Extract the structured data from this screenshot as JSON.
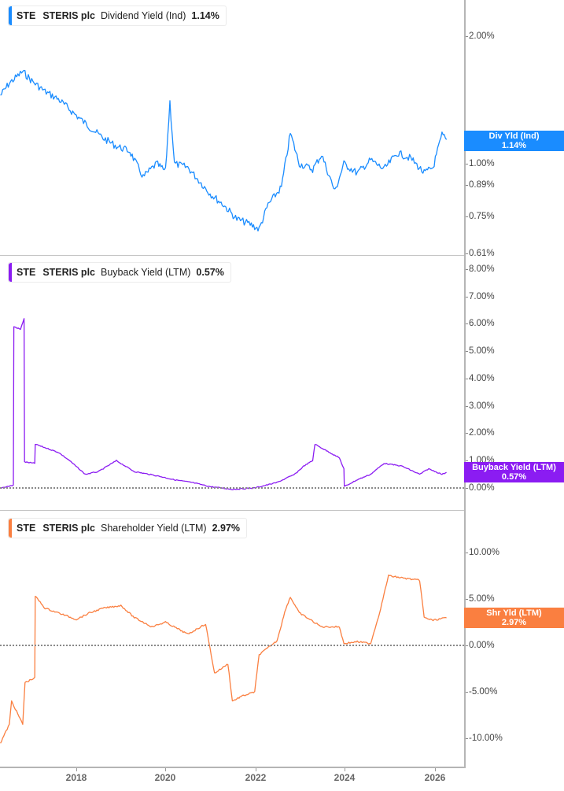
{
  "ticker": "STE",
  "company": "STERIS plc",
  "panels": [
    {
      "id": "dividend",
      "metric": "Dividend Yield (Ind)",
      "value": "1.14%",
      "color": "#1a8cff",
      "tag": {
        "line1": "Div Yld (Ind)",
        "line2": "1.14%"
      },
      "ticks": [
        "2.00%",
        "1.00%",
        "0.89%",
        "0.75%",
        "0.61%"
      ]
    },
    {
      "id": "buyback",
      "metric": "Buyback Yield (LTM)",
      "value": "0.57%",
      "color": "#8b1cf2",
      "tag": {
        "line1": "Buyback Yield (LTM)",
        "line2": "0.57%"
      },
      "ticks": [
        "8.00%",
        "7.00%",
        "6.00%",
        "5.00%",
        "4.00%",
        "3.00%",
        "2.00%",
        "1.00%",
        "0.00%"
      ]
    },
    {
      "id": "shareholder",
      "metric": "Shareholder Yield (LTM)",
      "value": "2.97%",
      "color": "#fa7f40",
      "tag": {
        "line1": "Shr Yld (LTM)",
        "line2": "2.97%"
      },
      "ticks": [
        "10.00%",
        "5.00%",
        "0.00%",
        "-5.00%",
        "-10.00%"
      ]
    }
  ],
  "x_axis": {
    "labels": [
      "2018",
      "2020",
      "2022",
      "2024",
      "2026"
    ]
  },
  "chart_data": [
    {
      "type": "line",
      "title": "STE STERIS plc Dividend Yield (Ind) 1.14%",
      "xlabel": "",
      "ylabel": "Dividend Yield (Ind)",
      "scale": "log",
      "yticks": [
        "2.00%",
        "1.00%",
        "0.89%",
        "0.75%",
        "0.61%"
      ],
      "ylim": [
        0.61,
        2.5
      ],
      "series": [
        {
          "name": "Div Yld (Ind)",
          "color": "#1a8cff",
          "x": [
            2016.3,
            2016.5,
            2016.8,
            2017.0,
            2017.3,
            2017.6,
            2018.0,
            2018.3,
            2018.6,
            2018.9,
            2019.2,
            2019.5,
            2019.8,
            2020.0,
            2020.1,
            2020.2,
            2020.5,
            2020.8,
            2021.0,
            2021.3,
            2021.6,
            2021.9,
            2022.1,
            2022.3,
            2022.6,
            2022.8,
            2023.0,
            2023.3,
            2023.5,
            2023.8,
            2024.0,
            2024.3,
            2024.6,
            2024.9,
            2025.2,
            2025.5,
            2025.8,
            2026.0,
            2026.2,
            2026.3
          ],
          "values": [
            1.45,
            1.55,
            1.65,
            1.57,
            1.48,
            1.42,
            1.3,
            1.22,
            1.15,
            1.1,
            1.07,
            0.93,
            1.0,
            0.96,
            1.4,
            1.0,
            0.98,
            0.9,
            0.85,
            0.8,
            0.74,
            0.72,
            0.7,
            0.8,
            0.88,
            1.18,
            1.0,
            0.97,
            1.05,
            0.86,
            1.0,
            0.95,
            1.02,
            0.97,
            1.06,
            1.03,
            0.95,
            0.98,
            1.17,
            1.14
          ]
        }
      ]
    },
    {
      "type": "line",
      "title": "STE STERIS plc Buyback Yield (LTM) 0.57%",
      "xlabel": "",
      "ylabel": "Buyback Yield (LTM)",
      "yticks": [
        "8.00%",
        "7.00%",
        "6.00%",
        "5.00%",
        "4.00%",
        "3.00%",
        "2.00%",
        "1.00%",
        "0.00%"
      ],
      "ylim": [
        -0.2,
        8.0
      ],
      "series": [
        {
          "name": "Buyback Yield (LTM)",
          "color": "#8b1cf2",
          "x": [
            2016.3,
            2016.59,
            2016.6,
            2016.75,
            2016.83,
            2016.84,
            2017.07,
            2017.08,
            2017.6,
            2017.85,
            2018.2,
            2018.5,
            2018.9,
            2019.3,
            2019.8,
            2020.2,
            2020.6,
            2021.0,
            2021.5,
            2022.0,
            2022.5,
            2022.9,
            2023.1,
            2023.3,
            2023.35,
            2023.9,
            2024.0,
            2024.01,
            2024.3,
            2024.6,
            2024.9,
            2025.3,
            2025.7,
            2025.9,
            2026.2,
            2026.3
          ],
          "values": [
            0.0,
            0.1,
            5.9,
            5.8,
            6.2,
            0.95,
            0.9,
            1.6,
            1.3,
            1.0,
            0.5,
            0.6,
            1.0,
            0.6,
            0.45,
            0.3,
            0.2,
            0.05,
            -0.05,
            0.0,
            0.2,
            0.5,
            0.8,
            1.0,
            1.6,
            1.1,
            0.7,
            0.05,
            0.3,
            0.5,
            0.9,
            0.8,
            0.5,
            0.7,
            0.5,
            0.57
          ]
        }
      ]
    },
    {
      "type": "line",
      "title": "STE STERIS plc Shareholder Yield (LTM) 2.97%",
      "xlabel": "",
      "ylabel": "Shareholder Yield (LTM)",
      "yticks": [
        "10.00%",
        "5.00%",
        "0.00%",
        "-5.00%",
        "-10.00%"
      ],
      "ylim": [
        -13,
        13
      ],
      "series": [
        {
          "name": "Shr Yld (LTM)",
          "color": "#fa7f40",
          "x": [
            2016.3,
            2016.5,
            2016.55,
            2016.8,
            2016.85,
            2017.07,
            2017.08,
            2017.3,
            2017.6,
            2018.0,
            2018.3,
            2018.6,
            2019.0,
            2019.3,
            2019.7,
            2020.0,
            2020.5,
            2020.9,
            2021.1,
            2021.4,
            2021.5,
            2021.7,
            2022.0,
            2022.1,
            2022.5,
            2022.7,
            2022.8,
            2023.0,
            2023.5,
            2023.9,
            2024.0,
            2024.3,
            2024.6,
            2024.8,
            2025.0,
            2025.4,
            2025.7,
            2025.8,
            2026.0,
            2026.3
          ],
          "values": [
            -10.5,
            -8.5,
            -6.0,
            -8.5,
            -4.0,
            -3.5,
            5.3,
            4.0,
            3.5,
            2.8,
            3.5,
            4.0,
            4.3,
            3.0,
            2.0,
            2.5,
            1.2,
            2.3,
            -3.0,
            -2.0,
            -6.0,
            -5.5,
            -5.0,
            -1.0,
            0.5,
            4.0,
            5.2,
            3.5,
            2.0,
            2.0,
            0.2,
            0.4,
            0.2,
            3.5,
            7.5,
            7.2,
            7.0,
            3.0,
            2.7,
            2.97
          ]
        }
      ]
    }
  ]
}
